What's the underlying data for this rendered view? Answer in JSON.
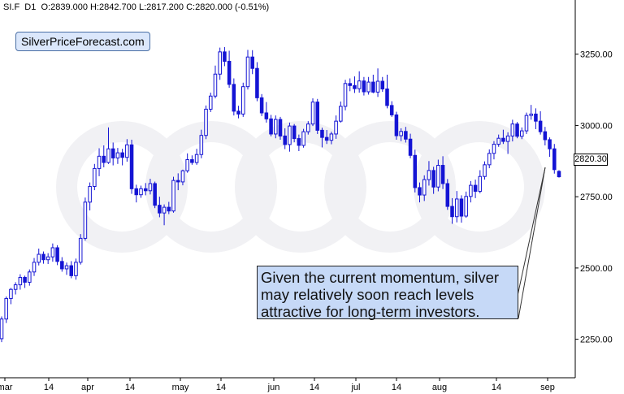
{
  "header": {
    "symbol": "SI.F",
    "interval": "D1",
    "ohlc": "O:2839.000  H:2842.700  L:2817.200  C:2820.000  (-0.51%)"
  },
  "badge": {
    "text": "SilverPriceForecast.com"
  },
  "annotation": {
    "lines": [
      "Given the current momentum, silver",
      "may relatively soon reach levels",
      "attractive for long-term investors."
    ]
  },
  "last_price": "2820.30",
  "colors": {
    "up": "#ffffff",
    "down": "#1414d4",
    "wick": "#1414d4",
    "note_bg": "#c6d9f7",
    "badge_bg": "#dbe7fb"
  },
  "chart_data": {
    "type": "candlestick",
    "y_tick_labels": [
      "3250.00",
      "3000.00",
      "2750.00",
      "2500.00",
      "2250.00"
    ],
    "y_ticks": [
      3250,
      3000,
      2750,
      2500,
      2250
    ],
    "ylim": [
      2115,
      3440
    ],
    "x_tick_labels": [
      "mar",
      "14",
      "apr",
      "14",
      "may",
      "14",
      "jun",
      "14",
      "jul",
      "14",
      "aug",
      "14",
      "sep"
    ],
    "candles": [
      [
        2252,
        2330,
        2240,
        2321
      ],
      [
        2321,
        2400,
        2307,
        2393
      ],
      [
        2393,
        2430,
        2373,
        2425
      ],
      [
        2425,
        2450,
        2407,
        2441
      ],
      [
        2441,
        2478,
        2424,
        2467
      ],
      [
        2467,
        2473,
        2430,
        2450
      ],
      [
        2450,
        2495,
        2438,
        2486
      ],
      [
        2486,
        2535,
        2472,
        2520
      ],
      [
        2520,
        2568,
        2509,
        2548
      ],
      [
        2548,
        2558,
        2515,
        2529
      ],
      [
        2529,
        2552,
        2514,
        2539
      ],
      [
        2539,
        2586,
        2522,
        2571
      ],
      [
        2571,
        2580,
        2510,
        2523
      ],
      [
        2523,
        2538,
        2487,
        2497
      ],
      [
        2497,
        2519,
        2476,
        2508
      ],
      [
        2508,
        2524,
        2464,
        2473
      ],
      [
        2473,
        2533,
        2459,
        2520
      ],
      [
        2520,
        2619,
        2512,
        2604
      ],
      [
        2604,
        2747,
        2596,
        2731
      ],
      [
        2731,
        2800,
        2702,
        2786
      ],
      [
        2786,
        2865,
        2773,
        2849
      ],
      [
        2849,
        2920,
        2822,
        2892
      ],
      [
        2892,
        2930,
        2853,
        2870
      ],
      [
        2870,
        2993,
        2865,
        2918
      ],
      [
        2918,
        2940,
        2860,
        2886
      ],
      [
        2886,
        2921,
        2865,
        2904
      ],
      [
        2904,
        2918,
        2860,
        2888
      ],
      [
        2888,
        2952,
        2873,
        2932
      ],
      [
        2932,
        2950,
        2760,
        2778
      ],
      [
        2778,
        2792,
        2730,
        2757
      ],
      [
        2757,
        2789,
        2746,
        2778
      ],
      [
        2778,
        2798,
        2755,
        2771
      ],
      [
        2771,
        2813,
        2758,
        2796
      ],
      [
        2796,
        2803,
        2710,
        2720
      ],
      [
        2720,
        2750,
        2678,
        2693
      ],
      [
        2693,
        2723,
        2650,
        2713
      ],
      [
        2713,
        2732,
        2689,
        2700
      ],
      [
        2700,
        2820,
        2694,
        2807
      ],
      [
        2807,
        2832,
        2773,
        2802
      ],
      [
        2802,
        2845,
        2790,
        2841
      ],
      [
        2841,
        2902,
        2834,
        2880
      ],
      [
        2880,
        2895,
        2862,
        2870
      ],
      [
        2870,
        2918,
        2862,
        2898
      ],
      [
        2898,
        2985,
        2885,
        2965
      ],
      [
        2965,
        3070,
        2952,
        3057
      ],
      [
        3057,
        3115,
        3047,
        3103
      ],
      [
        3103,
        3210,
        3095,
        3180
      ],
      [
        3180,
        3273,
        3160,
        3258
      ],
      [
        3258,
        3275,
        3208,
        3225
      ],
      [
        3225,
        3262,
        3132,
        3144
      ],
      [
        3144,
        3165,
        3035,
        3050
      ],
      [
        3050,
        3069,
        3025,
        3040
      ],
      [
        3040,
        3150,
        3030,
        3136
      ],
      [
        3136,
        3265,
        3126,
        3240
      ],
      [
        3240,
        3264,
        3180,
        3200
      ],
      [
        3200,
        3222,
        3085,
        3097
      ],
      [
        3097,
        3110,
        3033,
        3044
      ],
      [
        3044,
        3082,
        3010,
        3023
      ],
      [
        3023,
        3037,
        2962,
        2970
      ],
      [
        2970,
        3035,
        2955,
        3021
      ],
      [
        3021,
        3030,
        2950,
        2963
      ],
      [
        2963,
        2990,
        2917,
        2933
      ],
      [
        2933,
        3010,
        2908,
        2998
      ],
      [
        2998,
        3005,
        2941,
        2954
      ],
      [
        2954,
        2968,
        2910,
        2930
      ],
      [
        2930,
        2988,
        2922,
        2978
      ],
      [
        2978,
        3015,
        2968,
        3005
      ],
      [
        3005,
        3095,
        2998,
        3082
      ],
      [
        3082,
        3093,
        2970,
        2983
      ],
      [
        2983,
        2992,
        2923,
        2958
      ],
      [
        2958,
        2984,
        2935,
        2948
      ],
      [
        2948,
        2978,
        2934,
        2970
      ],
      [
        2970,
        3035,
        2953,
        3015
      ],
      [
        3015,
        3084,
        3010,
        3067
      ],
      [
        3067,
        3160,
        3053,
        3147
      ],
      [
        3147,
        3165,
        3120,
        3140
      ],
      [
        3140,
        3172,
        3114,
        3129
      ],
      [
        3129,
        3190,
        3115,
        3156
      ],
      [
        3156,
        3170,
        3105,
        3118
      ],
      [
        3118,
        3170,
        3108,
        3152
      ],
      [
        3152,
        3178,
        3113,
        3117
      ],
      [
        3117,
        3200,
        3100,
        3155
      ],
      [
        3155,
        3170,
        3118,
        3128
      ],
      [
        3128,
        3178,
        3060,
        3070
      ],
      [
        3070,
        3085,
        3030,
        3037
      ],
      [
        3037,
        3048,
        2950,
        2964
      ],
      [
        2964,
        2990,
        2945,
        2979
      ],
      [
        2979,
        2995,
        2940,
        2952
      ],
      [
        2952,
        2971,
        2885,
        2895
      ],
      [
        2895,
        2915,
        2765,
        2782
      ],
      [
        2782,
        2800,
        2730,
        2756
      ],
      [
        2756,
        2825,
        2735,
        2810
      ],
      [
        2810,
        2875,
        2789,
        2842
      ],
      [
        2842,
        2855,
        2760,
        2784
      ],
      [
        2784,
        2880,
        2769,
        2860
      ],
      [
        2860,
        2892,
        2777,
        2796
      ],
      [
        2796,
        2812,
        2704,
        2716
      ],
      [
        2716,
        2745,
        2655,
        2680
      ],
      [
        2680,
        2770,
        2660,
        2742
      ],
      [
        2742,
        2755,
        2659,
        2682
      ],
      [
        2682,
        2768,
        2676,
        2751
      ],
      [
        2751,
        2805,
        2730,
        2790
      ],
      [
        2790,
        2810,
        2745,
        2769
      ],
      [
        2769,
        2843,
        2762,
        2821
      ],
      [
        2821,
        2874,
        2810,
        2862
      ],
      [
        2862,
        2916,
        2850,
        2902
      ],
      [
        2902,
        2945,
        2881,
        2934
      ],
      [
        2934,
        2968,
        2925,
        2955
      ],
      [
        2955,
        2985,
        2935,
        2944
      ],
      [
        2944,
        2976,
        2900,
        2963
      ],
      [
        2963,
        3020,
        2944,
        3005
      ],
      [
        3005,
        3012,
        2955,
        2962
      ],
      [
        2962,
        2993,
        2952,
        2981
      ],
      [
        2981,
        3045,
        2970,
        3035
      ],
      [
        3035,
        3072,
        3020,
        3040
      ],
      [
        3040,
        3060,
        2987,
        3015
      ],
      [
        3015,
        3050,
        2968,
        2978
      ],
      [
        2978,
        2995,
        2930,
        2950
      ],
      [
        2950,
        2958,
        2890,
        2918
      ],
      [
        2918,
        2935,
        2831,
        2845
      ],
      [
        2839,
        2843,
        2817,
        2820
      ]
    ]
  }
}
